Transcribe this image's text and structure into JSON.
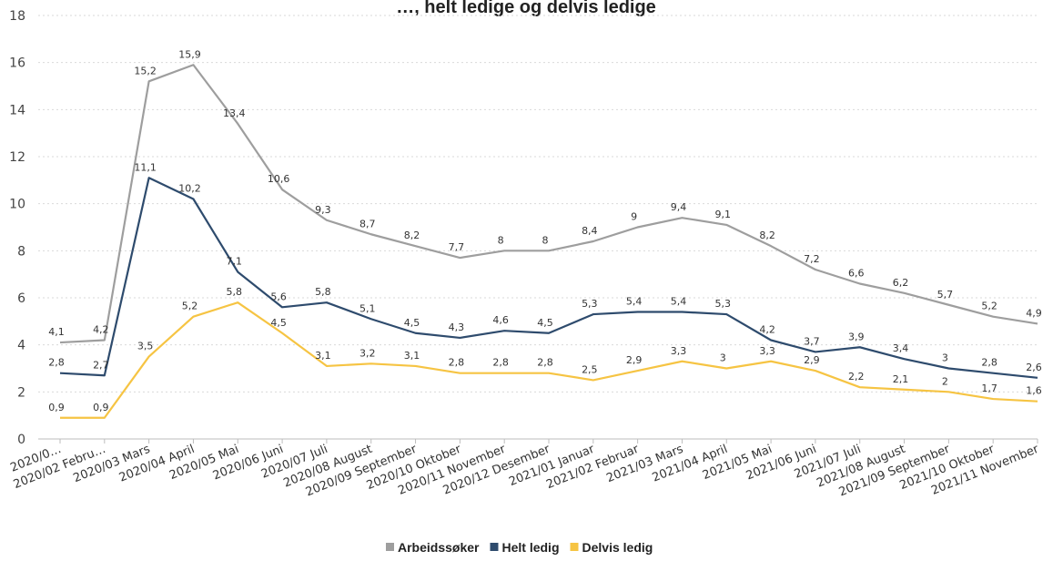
{
  "chart_data": {
    "type": "line",
    "title": "…, helt ledige og delvis ledige",
    "ylim": [
      0,
      18
    ],
    "yticks": [
      "0",
      "2",
      "4",
      "6",
      "8",
      "10",
      "12",
      "14",
      "16",
      "18"
    ],
    "categories": [
      "2020/0…",
      "2020/02 Febru…",
      "2020/03 Mars",
      "2020/04 April",
      "2020/05 Mai",
      "2020/06 Juni",
      "2020/07 Juli",
      "2020/08 August",
      "2020/09 September",
      "2020/10 Oktober",
      "2020/11 November",
      "2020/12 Desember",
      "2021/01 Januar",
      "2021/02 Februar",
      "2021/03 Mars",
      "2021/04 April",
      "2021/05 Mai",
      "2021/06 Juni",
      "2021/07 Juli",
      "2021/08 August",
      "2021/09 September",
      "2021/10 Oktober",
      "2021/11 November"
    ],
    "series": [
      {
        "name": "Arbeidssøker",
        "color": "#9e9e9e",
        "values": [
          4.1,
          4.2,
          15.2,
          15.9,
          13.4,
          10.6,
          9.3,
          8.7,
          8.2,
          7.7,
          8,
          8,
          8.4,
          9,
          9.4,
          9.1,
          8.2,
          7.2,
          6.6,
          6.2,
          5.7,
          5.2,
          4.9
        ],
        "labels": [
          "4,1",
          "4,2",
          "15,2",
          "15,9",
          "13,4",
          "10,6",
          "9,3",
          "8,7",
          "8,2",
          "7,7",
          "8",
          "8",
          "8,4",
          "9",
          "9,4",
          "9,1",
          "8,2",
          "7,2",
          "6,6",
          "6,2",
          "5,7",
          "5,2",
          "4,9"
        ]
      },
      {
        "name": "Helt ledig",
        "color": "#2e4b6d",
        "values": [
          2.8,
          2.7,
          11.1,
          10.2,
          7.1,
          5.6,
          5.8,
          5.1,
          4.5,
          4.3,
          4.6,
          4.5,
          5.3,
          5.4,
          5.4,
          5.3,
          4.2,
          3.7,
          3.9,
          3.4,
          3,
          2.8,
          2.6
        ],
        "labels": [
          "2,8",
          "2,7",
          "11,1",
          "10,2",
          "7,1",
          "5,6",
          "5,8",
          "5,1",
          "4,5",
          "4,3",
          "4,6",
          "4,5",
          "5,3",
          "5,4",
          "5,4",
          "5,3",
          "4,2",
          "3,7",
          "3,9",
          "3,4",
          "3",
          "2,8",
          "2,6"
        ]
      },
      {
        "name": "Delvis ledig",
        "color": "#f6c443",
        "values": [
          0.9,
          0.9,
          3.5,
          5.2,
          5.8,
          4.5,
          3.1,
          3.2,
          3.1,
          2.8,
          2.8,
          2.8,
          2.5,
          2.9,
          3.3,
          3,
          3.3,
          2.9,
          2.2,
          2.1,
          2,
          1.7,
          1.6
        ],
        "labels": [
          "0,9",
          "0,9",
          "3,5",
          "5,2",
          "5,8",
          "4,5",
          "3,1",
          "3,2",
          "3,1",
          "2,8",
          "2,8",
          "2,8",
          "2,5",
          "2,9",
          "3,3",
          "3",
          "3,3",
          "2,9",
          "2,2",
          "2,1",
          "2",
          "1,7",
          "1,6"
        ]
      }
    ],
    "grid": true,
    "legend_position": "bottom-center"
  }
}
